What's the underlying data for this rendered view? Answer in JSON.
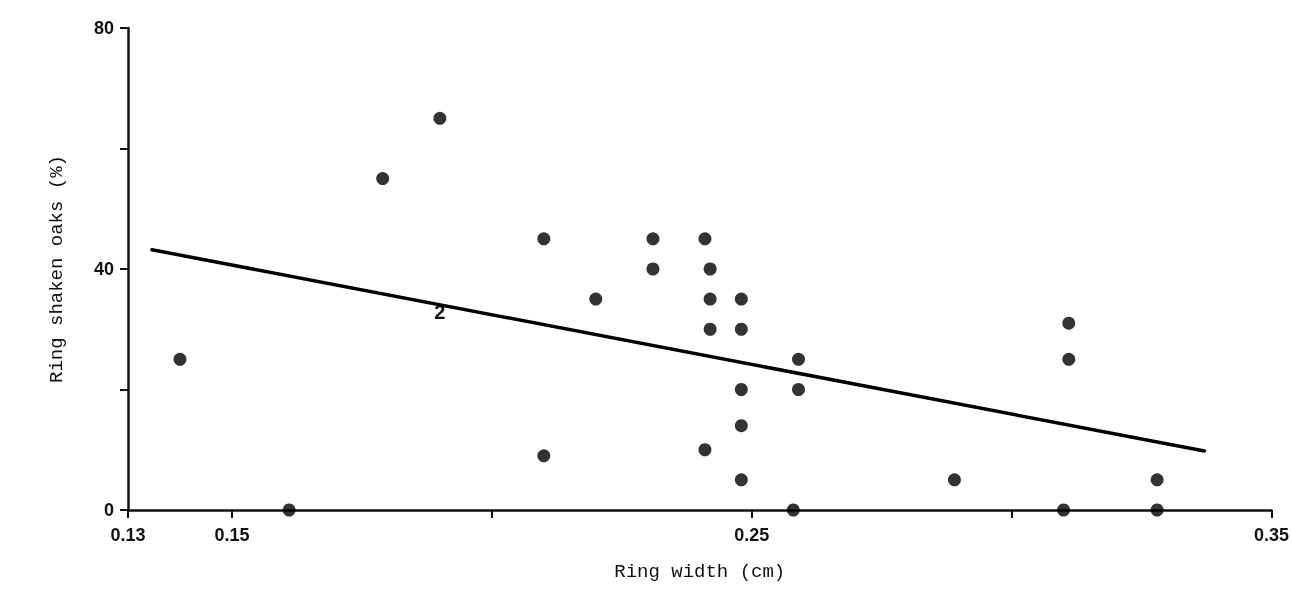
{
  "chart_data": {
    "type": "scatter",
    "xlabel": "Ring width (cm)",
    "ylabel": "Ring shaken oaks (%)",
    "xlim": [
      0.13,
      0.35
    ],
    "ylim": [
      0,
      80
    ],
    "xticks": [
      0.13,
      0.15,
      {
        "value": 0.2,
        "label": null
      },
      0.25,
      {
        "value": 0.3,
        "label": null
      },
      0.35
    ],
    "yticks": [
      0,
      {
        "value": 20,
        "label": null
      },
      40,
      {
        "value": 60,
        "label": null
      },
      80
    ],
    "grid": false,
    "marker": "circle",
    "series": [
      {
        "type": "scatter",
        "color": "#000000",
        "x": [
          0.14,
          0.161,
          0.179,
          0.19,
          0.21,
          0.21,
          0.22,
          0.231,
          0.231,
          0.241,
          0.242,
          0.242,
          0.242,
          0.241,
          0.248,
          0.248,
          0.248,
          0.248,
          0.248,
          0.259,
          0.259,
          0.258,
          0.289,
          0.311,
          0.311,
          0.31,
          0.328,
          0.328
        ],
        "values": [
          25,
          0,
          55,
          65,
          45,
          9,
          35,
          45,
          40,
          45,
          40,
          35,
          30,
          10,
          35,
          30,
          20,
          14,
          5,
          25,
          20,
          0,
          5,
          31,
          25,
          0,
          5,
          0
        ]
      },
      {
        "type": "line",
        "color": "#000000",
        "marker": "none",
        "line_style": "solid",
        "x": [
          0.1346,
          0.3371
        ],
        "values": [
          43.2,
          9.8
        ]
      }
    ],
    "annotations": [
      {
        "text": "2",
        "x": 0.19,
        "y": 34
      }
    ]
  }
}
